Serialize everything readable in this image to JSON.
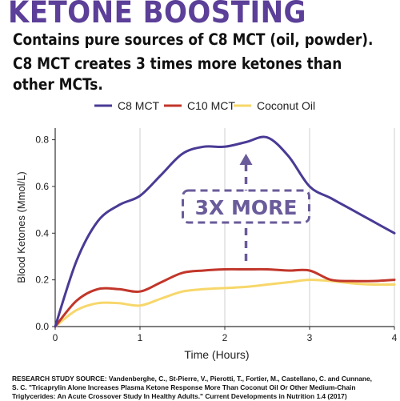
{
  "heading": "KETONE BOOSTING",
  "subheading_lines": [
    "Contains pure sources of C8 MCT (oil, powder).",
    "C8 MCT creates 3 times more ketones than",
    "other MCTs."
  ],
  "colors": {
    "heading": "#5b3f98",
    "c8": "#4a3a95",
    "c10": "#c2362a",
    "coconut": "#f7d76a",
    "callout": "#6a5b9a"
  },
  "chart_data": {
    "type": "line",
    "xlabel": "Time (Hours)",
    "ylabel": "Blood Ketones (Mmol/L)",
    "xlim": [
      0,
      4
    ],
    "ylim": [
      0,
      0.85
    ],
    "x_ticks": [
      0,
      1,
      2,
      3,
      4
    ],
    "y_ticks": [
      0.0,
      0.2,
      0.4,
      0.6,
      0.8
    ],
    "x_tick_labels": [
      "0",
      "1",
      "2",
      "3",
      "4"
    ],
    "y_tick_labels": [
      "0.0",
      "0.2",
      "0.4",
      "0.6",
      "0.8"
    ],
    "grid": "vertical",
    "legend_position": "top",
    "series": [
      {
        "name": "C8 MCT",
        "color": "#4a3a95",
        "x": [
          0,
          0.25,
          0.5,
          0.75,
          1,
          1.25,
          1.5,
          1.75,
          2,
          2.25,
          2.5,
          2.75,
          3,
          3.25,
          3.5,
          3.75,
          4
        ],
        "y": [
          0.0,
          0.28,
          0.45,
          0.52,
          0.56,
          0.65,
          0.74,
          0.77,
          0.77,
          0.79,
          0.81,
          0.73,
          0.6,
          0.55,
          0.5,
          0.45,
          0.4
        ]
      },
      {
        "name": "C10 MCT",
        "color": "#c2362a",
        "x": [
          0,
          0.25,
          0.5,
          0.75,
          1,
          1.25,
          1.5,
          1.75,
          2,
          2.25,
          2.5,
          2.75,
          3,
          3.25,
          3.5,
          3.75,
          4
        ],
        "y": [
          0.0,
          0.11,
          0.16,
          0.16,
          0.15,
          0.19,
          0.23,
          0.24,
          0.245,
          0.245,
          0.245,
          0.24,
          0.24,
          0.2,
          0.195,
          0.195,
          0.2
        ]
      },
      {
        "name": "Coconut Oil",
        "color": "#f7d76a",
        "x": [
          0,
          0.25,
          0.5,
          0.75,
          1,
          1.25,
          1.5,
          1.75,
          2,
          2.25,
          2.5,
          2.75,
          3,
          3.25,
          3.5,
          3.75,
          4
        ],
        "y": [
          0.0,
          0.07,
          0.1,
          0.1,
          0.09,
          0.12,
          0.15,
          0.16,
          0.165,
          0.17,
          0.18,
          0.19,
          0.2,
          0.195,
          0.185,
          0.18,
          0.18
        ]
      }
    ],
    "annotation": {
      "text": "3X MORE",
      "x": 2.25
    }
  },
  "source_lines": [
    "RESEARCH STUDY SOURCE: Vandenberghe, C., St-Pierre, V., Pierotti, T., Fortier, M., Castellano, C. and Cunnane,",
    "S. C. \"Tricaprylin Alone Increases Plasma Ketone Response More Than Coconut Oil Or Other Medium-Chain",
    "Triglycerides: An Acute Crossover Study In Healthy Adults.\" Current Developments in Nutrition 1.4 (2017)"
  ]
}
